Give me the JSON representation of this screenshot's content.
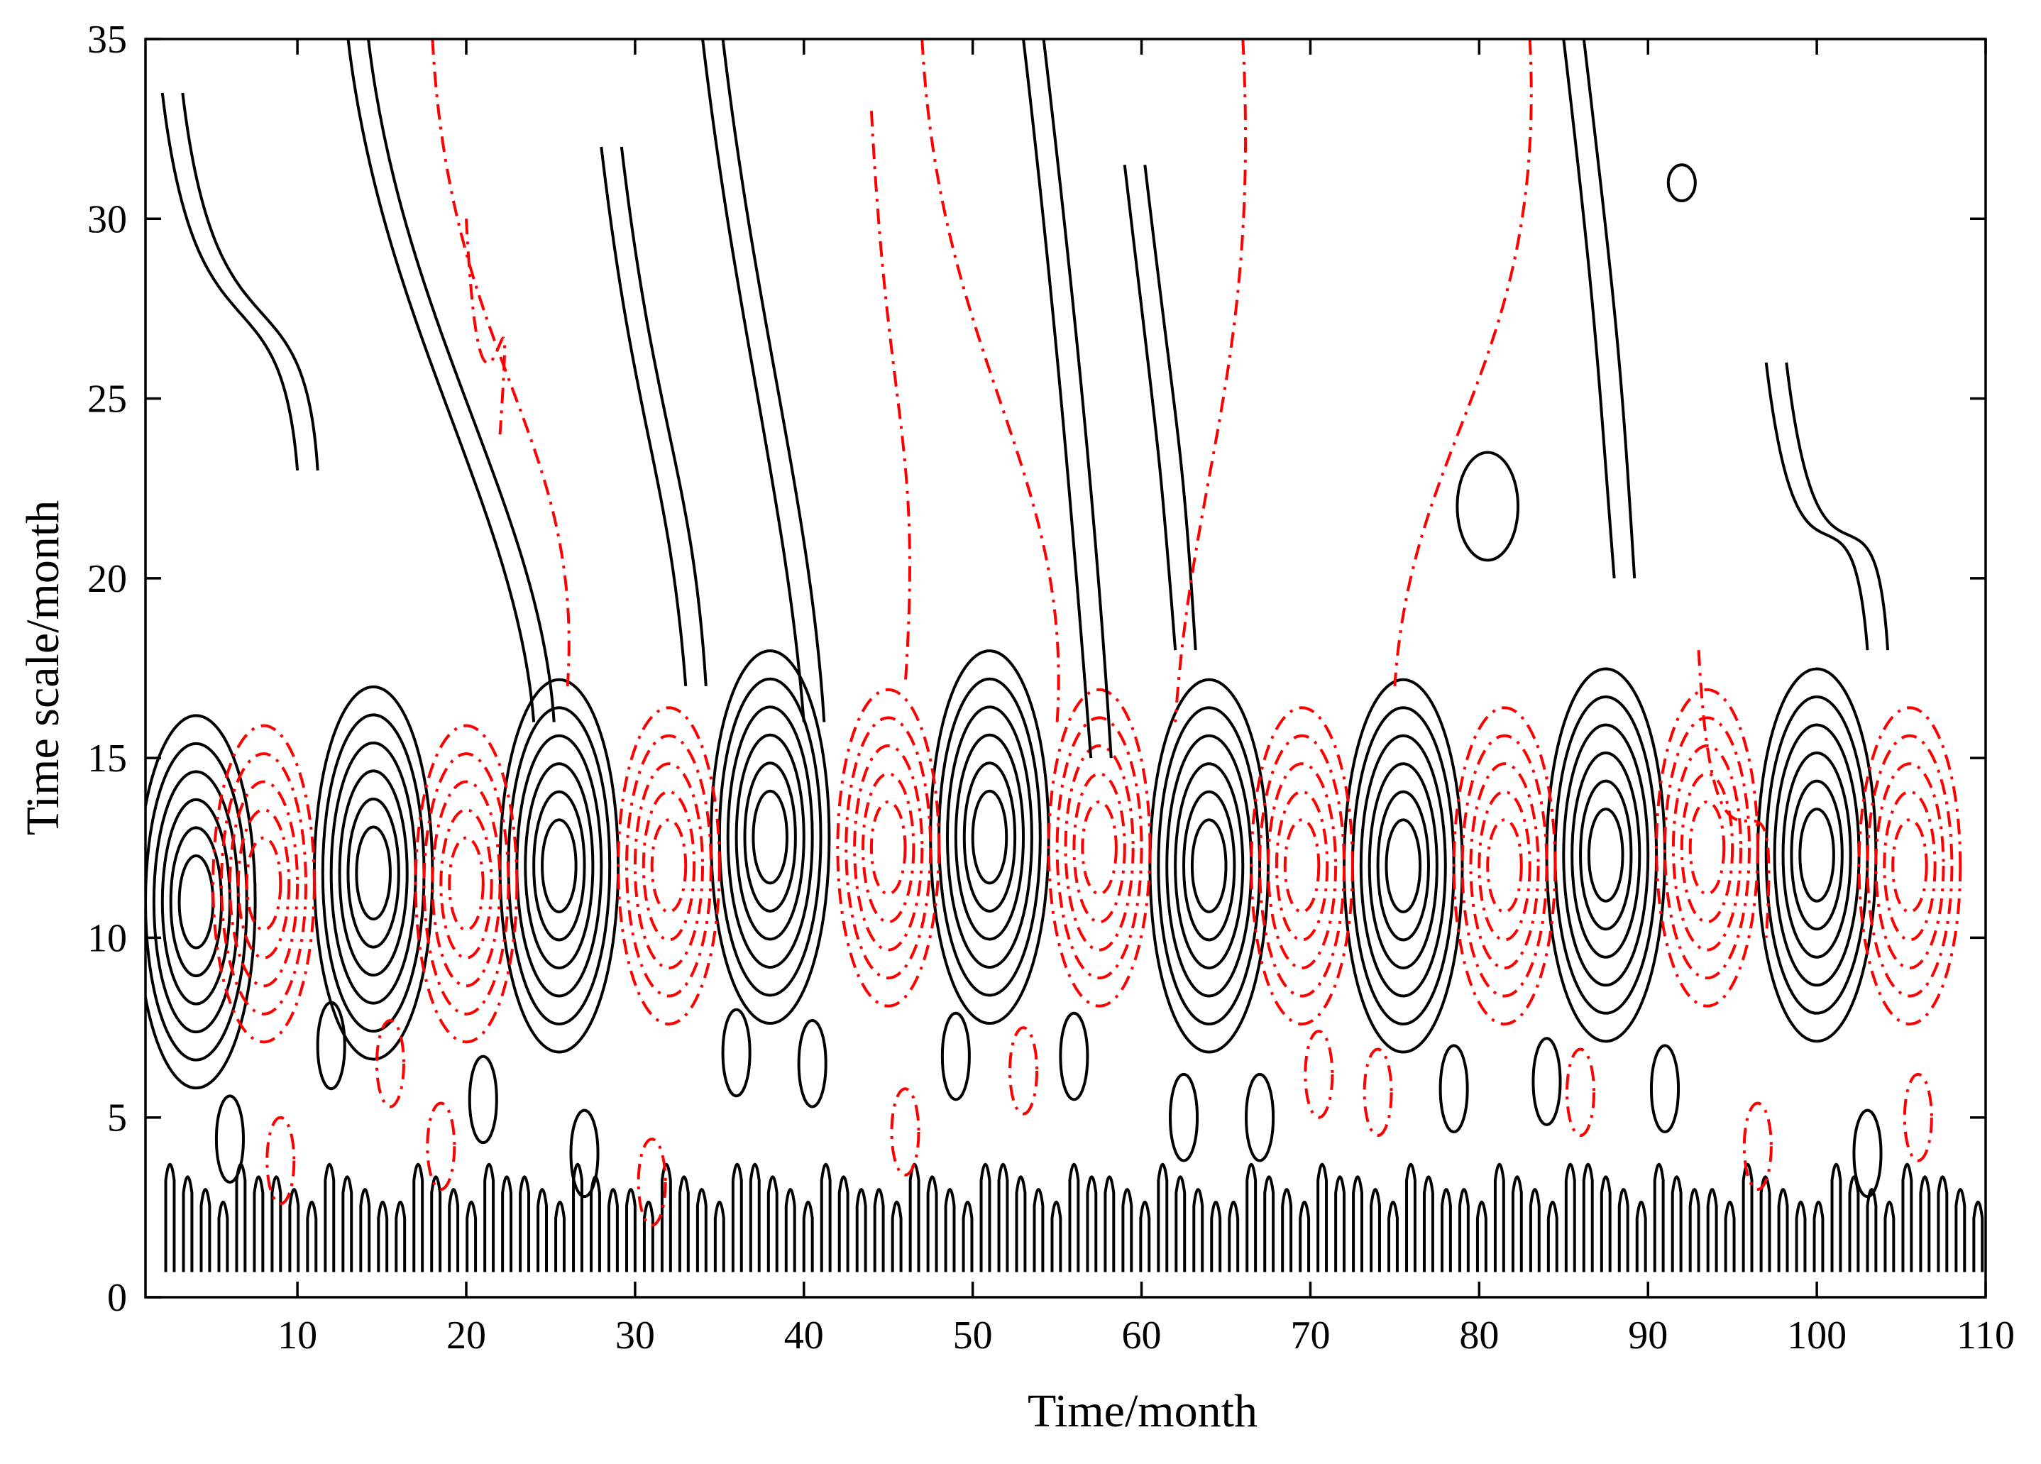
{
  "chart_data": {
    "type": "contour",
    "title": "",
    "xlabel": "Time/month",
    "ylabel": "Time scale/month",
    "xlim": [
      1,
      110
    ],
    "ylim": [
      0,
      35
    ],
    "xticks": [
      10,
      20,
      30,
      40,
      50,
      60,
      70,
      80,
      90,
      100,
      110
    ],
    "yticks": [
      0,
      5,
      10,
      15,
      20,
      25,
      30,
      35
    ],
    "colors": {
      "positive": "#000000",
      "negative": "#ff0000"
    },
    "line_styles": {
      "positive": "solid",
      "negative": "dash-dot"
    },
    "dominant_period_months": 12,
    "oscillation_band": [
      8,
      17
    ],
    "positive_centers": [
      {
        "x": 4,
        "y": 11
      },
      {
        "x": 14.5,
        "y": 11.8
      },
      {
        "x": 25.5,
        "y": 12
      },
      {
        "x": 38,
        "y": 12.8
      },
      {
        "x": 51,
        "y": 12.8
      },
      {
        "x": 64,
        "y": 12
      },
      {
        "x": 75.5,
        "y": 12
      },
      {
        "x": 87.5,
        "y": 12.3
      },
      {
        "x": 100,
        "y": 12.3
      }
    ],
    "negative_centers": [
      {
        "x": 8,
        "y": 11.5
      },
      {
        "x": 20,
        "y": 11.5
      },
      {
        "x": 32,
        "y": 12
      },
      {
        "x": 45,
        "y": 12.5
      },
      {
        "x": 57.5,
        "y": 12.5
      },
      {
        "x": 69.5,
        "y": 12
      },
      {
        "x": 81.5,
        "y": 12
      },
      {
        "x": 93.5,
        "y": 12.5
      },
      {
        "x": 105.5,
        "y": 12
      }
    ]
  }
}
